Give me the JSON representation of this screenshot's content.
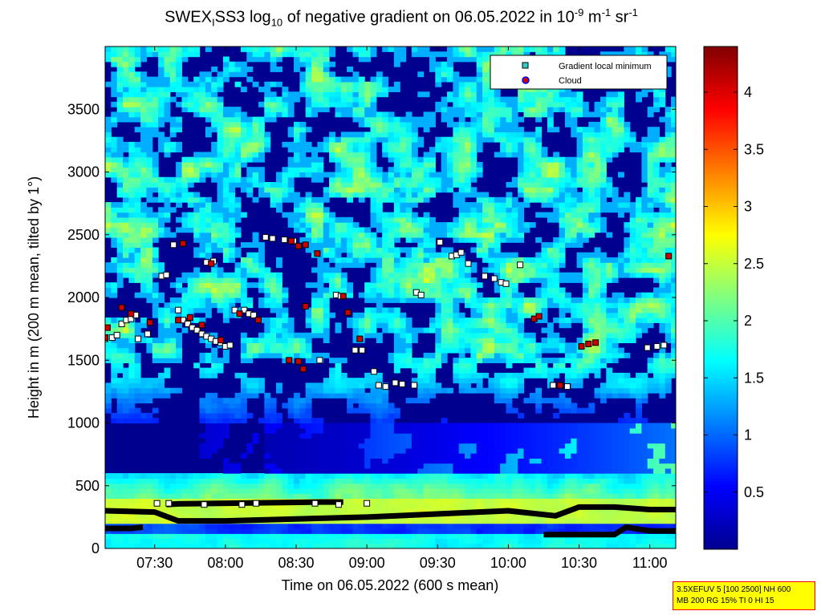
{
  "chart_data": {
    "type": "heatmap",
    "title": {
      "prefix": "SWEX",
      "prefix_sub": "I",
      "instrument": "SS3 log",
      "log_sub": "10",
      "middle": " of negative gradient on 06.05.2022 in 10",
      "exp1": "-9",
      "unit1": " m",
      "exp2": "-1",
      "unit2": " sr",
      "exp3": "-1"
    },
    "xlabel": "Time on 06.05.2022 (600 s mean)",
    "ylabel": "Height in m (200 m mean, tilted by 1°)",
    "x_ticks": [
      "07:30",
      "08:00",
      "08:30",
      "09:00",
      "09:30",
      "10:00",
      "10:30",
      "11:00"
    ],
    "x_tick_minutes": [
      450,
      480,
      510,
      540,
      570,
      600,
      630,
      660
    ],
    "xlim_minutes": [
      429,
      671
    ],
    "y_ticks": [
      0,
      500,
      1000,
      1500,
      2000,
      2500,
      3000,
      3500
    ],
    "ylim": [
      0,
      4000
    ],
    "colorbar": {
      "ticks": [
        "0.5",
        "1",
        "1.5",
        "2",
        "2.5",
        "3",
        "3.5",
        "4"
      ],
      "tick_values": [
        0.5,
        1,
        1.5,
        2,
        2.5,
        3,
        3.5,
        4
      ],
      "range": [
        0,
        4.4
      ],
      "colormap": "jet"
    },
    "legend": {
      "position": "top-right",
      "entries": [
        {
          "label": "Gradient local minimum",
          "marker": "square",
          "color": "#33cccc"
        },
        {
          "label": "Cloud",
          "marker": "circle",
          "color": "#cc0000",
          "edge": "#0000ff"
        }
      ]
    },
    "layers": [
      {
        "name": "surface band",
        "y_range": [
          200,
          600
        ],
        "value": 2.3
      },
      {
        "name": "boundary layer",
        "y_range": [
          600,
          1500
        ],
        "value": 0.3
      },
      {
        "name": "mixed upper layer",
        "y_range": [
          1500,
          4000
        ],
        "value": 1.6
      }
    ],
    "lines": [
      {
        "name": "lower layer top",
        "points": [
          [
            429,
            300
          ],
          [
            450,
            290
          ],
          [
            460,
            220
          ],
          [
            480,
            220
          ],
          [
            540,
            250
          ],
          [
            600,
            300
          ],
          [
            620,
            260
          ],
          [
            630,
            330
          ],
          [
            645,
            330
          ],
          [
            660,
            310
          ],
          [
            671,
            310
          ]
        ]
      },
      {
        "name": "lower boundary",
        "points": [
          [
            429,
            160
          ],
          [
            440,
            160
          ],
          [
            445,
            170
          ]
        ]
      },
      {
        "name": "mid boundary",
        "points": [
          [
            455,
            350
          ],
          [
            460,
            355
          ],
          [
            520,
            370
          ],
          [
            530,
            370
          ]
        ]
      },
      {
        "name": "late lower",
        "points": [
          [
            615,
            110
          ],
          [
            630,
            110
          ],
          [
            645,
            110
          ],
          [
            650,
            170
          ],
          [
            660,
            140
          ],
          [
            671,
            140
          ]
        ]
      }
    ],
    "minima": [
      [
        429,
        1670
      ],
      [
        432,
        1680
      ],
      [
        434,
        1700
      ],
      [
        436,
        1790
      ],
      [
        438,
        1820
      ],
      [
        440,
        1830
      ],
      [
        442,
        1860
      ],
      [
        443,
        1670
      ],
      [
        447,
        1710
      ],
      [
        453,
        2170
      ],
      [
        455,
        2180
      ],
      [
        458,
        2420
      ],
      [
        460,
        1900
      ],
      [
        462,
        1820
      ],
      [
        464,
        1790
      ],
      [
        466,
        1760
      ],
      [
        468,
        1740
      ],
      [
        470,
        1710
      ],
      [
        472,
        1690
      ],
      [
        474,
        1670
      ],
      [
        476,
        1650
      ],
      [
        478,
        1640
      ],
      [
        480,
        1610
      ],
      [
        482,
        1620
      ],
      [
        472,
        2280
      ],
      [
        475,
        2290
      ],
      [
        484,
        1900
      ],
      [
        488,
        1900
      ],
      [
        490,
        1870
      ],
      [
        492,
        1860
      ],
      [
        497,
        2480
      ],
      [
        500,
        2470
      ],
      [
        505,
        2460
      ],
      [
        509,
        2450
      ],
      [
        520,
        1500
      ],
      [
        527,
        2020
      ],
      [
        529,
        2010
      ],
      [
        535,
        1580
      ],
      [
        538,
        1580
      ],
      [
        543,
        1410
      ],
      [
        545,
        1300
      ],
      [
        548,
        1290
      ],
      [
        552,
        1320
      ],
      [
        555,
        1310
      ],
      [
        560,
        1300
      ],
      [
        561,
        2040
      ],
      [
        563,
        2020
      ],
      [
        571,
        2440
      ],
      [
        576,
        2330
      ],
      [
        578,
        2340
      ],
      [
        580,
        2360
      ],
      [
        583,
        2270
      ],
      [
        590,
        2170
      ],
      [
        594,
        2150
      ],
      [
        597,
        2120
      ],
      [
        599,
        2110
      ],
      [
        605,
        2260
      ],
      [
        619,
        1300
      ],
      [
        622,
        1300
      ],
      [
        625,
        1290
      ],
      [
        659,
        1600
      ],
      [
        663,
        1610
      ],
      [
        666,
        1620
      ],
      [
        451,
        360
      ],
      [
        456,
        360
      ],
      [
        471,
        350
      ],
      [
        487,
        350
      ],
      [
        493,
        360
      ],
      [
        518,
        360
      ],
      [
        528,
        350
      ],
      [
        540,
        360
      ]
    ],
    "clouds": [
      [
        429,
        1680
      ],
      [
        430,
        1760
      ],
      [
        436,
        1920
      ],
      [
        440,
        1870
      ],
      [
        448,
        1800
      ],
      [
        460,
        1820
      ],
      [
        465,
        1840
      ],
      [
        470,
        1780
      ],
      [
        478,
        1660
      ],
      [
        462,
        2430
      ],
      [
        474,
        2270
      ],
      [
        486,
        1870
      ],
      [
        494,
        1820
      ],
      [
        508,
        2450
      ],
      [
        511,
        2410
      ],
      [
        514,
        2420
      ],
      [
        519,
        2350
      ],
      [
        514,
        1930
      ],
      [
        507,
        1500
      ],
      [
        511,
        1490
      ],
      [
        513,
        1430
      ],
      [
        530,
        2010
      ],
      [
        532,
        1880
      ],
      [
        537,
        1670
      ],
      [
        611,
        1830
      ],
      [
        613,
        1850
      ],
      [
        622,
        1300
      ],
      [
        631,
        1610
      ],
      [
        634,
        1630
      ],
      [
        637,
        1640
      ],
      [
        668,
        2330
      ]
    ],
    "colors": {
      "background": "#00008f",
      "minimum_marker": "#ffffff",
      "cloud_marker": "#cc0000",
      "dense_line": "#000000"
    }
  },
  "info_box": {
    "line1": "3.5XEFUV 5 [100 2500] NH 600",
    "line2": "MB 200 RG 15% TI 0 HI 15"
  }
}
